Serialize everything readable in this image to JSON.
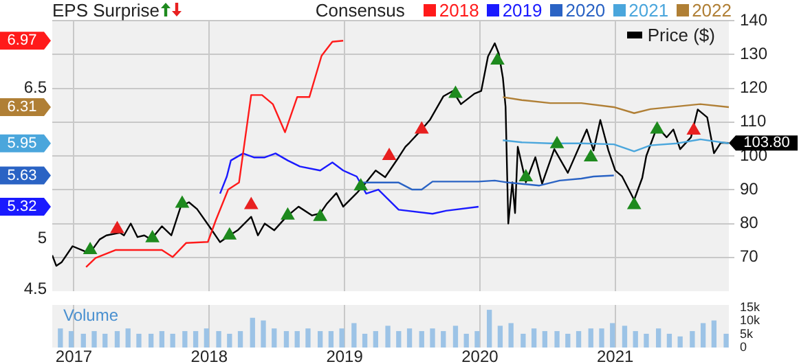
{
  "chart_data": [
    {
      "type": "line",
      "title": "EPS Surprise",
      "legend_title": "Consensus",
      "legend": "top",
      "grid": true,
      "marker": "none",
      "tick_labels": "y",
      "xlim": [
        2016.84,
        2021.84
      ],
      "xticks": [
        2017,
        2018,
        2019,
        2020,
        2021
      ],
      "ylim": [
        4.48,
        7.17
      ],
      "yticks": [
        4.5,
        5,
        6.5
      ],
      "y2lim": [
        60,
        140
      ],
      "y2ticks": [
        70,
        80,
        90,
        100,
        110,
        120,
        130,
        140
      ],
      "annotations": [
        "6.97",
        "5.32",
        "5.63",
        "5.95",
        "6.31"
      ],
      "series": [
        {
          "name": "2018",
          "color": "#ff1a1a",
          "x": [
            2017.09,
            2017.16,
            2017.31,
            2017.65,
            2017.73,
            2017.83,
            2017.99,
            2018.05,
            2018.14,
            2018.22,
            2018.31,
            2018.39,
            2018.47,
            2018.56,
            2018.65,
            2018.74,
            2018.83,
            2018.91,
            2018.99
          ],
          "values": [
            4.72,
            4.81,
            4.89,
            4.89,
            4.82,
            4.96,
            4.97,
            5.19,
            5.49,
            5.56,
            6.43,
            6.43,
            6.34,
            6.06,
            6.41,
            6.41,
            6.82,
            6.96,
            6.97
          ]
        },
        {
          "name": "2019",
          "color": "#1a1aff",
          "x": [
            2018.08,
            2018.13,
            2018.16,
            2018.25,
            2018.33,
            2018.41,
            2018.49,
            2018.58,
            2018.67,
            2018.82,
            2018.91,
            2018.99,
            2019.09,
            2019.16,
            2019.25,
            2019.4,
            2019.65,
            2019.75,
            2019.99
          ],
          "values": [
            5.45,
            5.62,
            5.78,
            5.85,
            5.81,
            5.81,
            5.85,
            5.78,
            5.72,
            5.68,
            5.76,
            5.68,
            5.62,
            5.45,
            5.49,
            5.29,
            5.25,
            5.28,
            5.32
          ]
        },
        {
          "name": "2020",
          "color": "#2a63c4",
          "x": [
            2019.12,
            2019.4,
            2019.5,
            2019.57,
            2019.65,
            2019.99,
            2020.11,
            2020.21,
            2020.44,
            2020.59,
            2020.75,
            2020.84,
            2020.99
          ],
          "values": [
            5.56,
            5.56,
            5.49,
            5.49,
            5.57,
            5.57,
            5.58,
            5.56,
            5.53,
            5.58,
            5.6,
            5.62,
            5.63
          ]
        },
        {
          "name": "2021",
          "color": "#4aa6dc",
          "x": [
            2020.17,
            2020.31,
            2020.52,
            2020.75,
            2020.99,
            2021.14,
            2021.26,
            2021.46,
            2021.63,
            2021.84
          ],
          "values": [
            5.98,
            5.96,
            5.95,
            5.95,
            5.94,
            5.87,
            5.93,
            5.95,
            5.99,
            5.95
          ]
        },
        {
          "name": "2022",
          "color": "#b07f35",
          "x": [
            2020.17,
            2020.31,
            2020.52,
            2020.75,
            2020.99,
            2021.14,
            2021.26,
            2021.63,
            2021.84
          ],
          "values": [
            6.41,
            6.38,
            6.35,
            6.35,
            6.31,
            6.25,
            6.29,
            6.34,
            6.31
          ]
        },
        {
          "name": "Price ($)",
          "color": "#000000",
          "axis": "y2",
          "x": [
            2016.84,
            2016.87,
            2016.91,
            2016.99,
            2017.08,
            2017.12,
            2017.19,
            2017.24,
            2017.34,
            2017.37,
            2017.42,
            2017.47,
            2017.52,
            2017.57,
            2017.65,
            2017.72,
            2017.79,
            2017.85,
            2017.91,
            2018.0,
            2018.08,
            2018.15,
            2018.21,
            2018.31,
            2018.36,
            2018.41,
            2018.48,
            2018.57,
            2018.66,
            2018.76,
            2018.82,
            2018.87,
            2018.94,
            2018.99,
            2019.09,
            2019.16,
            2019.23,
            2019.3,
            2019.4,
            2019.45,
            2019.48,
            2019.57,
            2019.63,
            2019.73,
            2019.8,
            2019.86,
            2019.96,
            2020.01,
            2020.06,
            2020.11,
            2020.14,
            2020.17,
            2020.19,
            2020.21,
            2020.24,
            2020.26,
            2020.28,
            2020.34,
            2020.41,
            2020.46,
            2020.55,
            2020.65,
            2020.79,
            2020.84,
            2020.89,
            2020.95,
            2021.0,
            2021.05,
            2021.14,
            2021.2,
            2021.23,
            2021.31,
            2021.38,
            2021.43,
            2021.48,
            2021.56,
            2021.61,
            2021.68,
            2021.73,
            2021.78,
            2021.84
          ],
          "values": [
            70.6,
            67.5,
            68.6,
            73.3,
            71.8,
            71.4,
            75.3,
            76.5,
            77.3,
            76.5,
            80,
            76,
            76.5,
            75.3,
            79.2,
            76.5,
            85.1,
            86.3,
            84.3,
            79.2,
            74.5,
            76.5,
            78,
            82,
            76.5,
            80,
            78,
            82,
            85,
            82.4,
            83,
            85.9,
            89,
            85,
            89,
            92.2,
            95.7,
            93.7,
            99.6,
            102.7,
            103.9,
            107.8,
            110.6,
            117.6,
            119.2,
            115.3,
            118.4,
            119.2,
            129.4,
            133.3,
            130.2,
            123.1,
            114.5,
            80,
            92.2,
            83.1,
            102.7,
            92.2,
            99.6,
            91.8,
            102,
            95,
            107.8,
            101.6,
            110.6,
            101.6,
            95.7,
            94,
            87,
            93.5,
            100,
            108.6,
            105.5,
            107.8,
            102,
            105.5,
            113.7,
            111.4,
            100.8,
            103.9,
            103.8
          ],
          "value_labels": [
            null,
            null,
            null,
            null,
            null,
            null,
            null,
            null,
            null,
            null,
            null,
            null,
            null,
            null,
            null,
            null,
            null,
            null,
            null,
            null,
            null,
            null,
            null,
            null,
            null,
            null,
            null,
            null,
            null,
            null,
            null,
            null,
            null,
            null,
            null,
            null,
            null,
            null,
            null,
            null,
            null,
            null,
            null,
            null,
            null,
            null,
            null,
            null,
            null,
            null,
            null,
            null,
            null,
            null,
            null,
            null,
            null,
            null,
            null,
            null,
            null,
            null,
            null,
            null,
            null,
            null,
            null,
            null,
            null,
            null,
            null,
            null,
            null,
            null,
            null,
            null,
            null,
            null,
            null,
            null,
            "103.80"
          ]
        },
        {
          "type": "scatter",
          "color": "#1e8a1e",
          "axis": "y2",
          "marker": "triangle",
          "x": [
            2017.12,
            2017.58,
            2017.8,
            2018.15,
            2018.58,
            2018.82,
            2019.12,
            2019.82,
            2020.13,
            2020.34,
            2020.57,
            2020.82,
            2021.14,
            2021.31
          ],
          "values": [
            72.2,
            75.7,
            85.9,
            76.5,
            82.4,
            82,
            91,
            118.4,
            128.2,
            93.7,
            103.5,
            99.6,
            85.5,
            107.8
          ]
        },
        {
          "type": "scatter",
          "color": "#e82020",
          "axis": "y2",
          "marker": "triangle",
          "x": [
            2017.32,
            2018.31,
            2019.33,
            2019.57,
            2021.58
          ],
          "values": [
            78.4,
            85.5,
            100,
            107.8,
            107.5
          ]
        }
      ]
    },
    {
      "type": "bar",
      "y2label": "Volume",
      "grid": "x",
      "xlim": [
        2016.84,
        2021.84
      ],
      "xticks": [
        2017,
        2018,
        2019,
        2020,
        2021
      ],
      "y2lim": [
        0,
        16000
      ],
      "y2ticks": [
        0,
        {
          "value": 5000,
          "label": "5k"
        },
        {
          "value": 10000,
          "label": "10k"
        },
        {
          "value": 15000,
          "label": "15k"
        }
      ],
      "series": [
        {
          "color": "#9cc3e6",
          "axis": "y2",
          "x": [
            2016.9,
            2016.98,
            2017.07,
            2017.15,
            2017.23,
            2017.32,
            2017.4,
            2017.48,
            2017.57,
            2017.65,
            2017.73,
            2017.82,
            2017.9,
            2017.98,
            2018.07,
            2018.15,
            2018.23,
            2018.32,
            2018.4,
            2018.48,
            2018.57,
            2018.65,
            2018.73,
            2018.82,
            2018.9,
            2018.98,
            2019.07,
            2019.15,
            2019.23,
            2019.32,
            2019.4,
            2019.48,
            2019.57,
            2019.65,
            2019.73,
            2019.82,
            2019.9,
            2019.98,
            2020.07,
            2020.15,
            2020.23,
            2020.32,
            2020.4,
            2020.48,
            2020.57,
            2020.65,
            2020.73,
            2020.82,
            2020.9,
            2020.98,
            2021.07,
            2021.15,
            2021.23,
            2021.32,
            2021.4,
            2021.48,
            2021.57,
            2021.65,
            2021.73,
            2021.82
          ],
          "values": [
            7000,
            6000,
            5000,
            6000,
            5000,
            6000,
            7000,
            5000,
            5000,
            6000,
            5000,
            6000,
            6000,
            7000,
            6000,
            5000,
            6000,
            11000,
            10000,
            7000,
            6000,
            6000,
            7000,
            6000,
            6000,
            7000,
            9000,
            5000,
            6000,
            8000,
            6000,
            7000,
            6000,
            7000,
            6000,
            8000,
            5000,
            6000,
            14000,
            8000,
            9000,
            5000,
            7000,
            6000,
            6000,
            5000,
            6000,
            7000,
            7000,
            9000,
            8000,
            6000,
            5000,
            7000,
            5000,
            4000,
            6000,
            9000,
            10000,
            5000
          ]
        }
      ]
    }
  ]
}
